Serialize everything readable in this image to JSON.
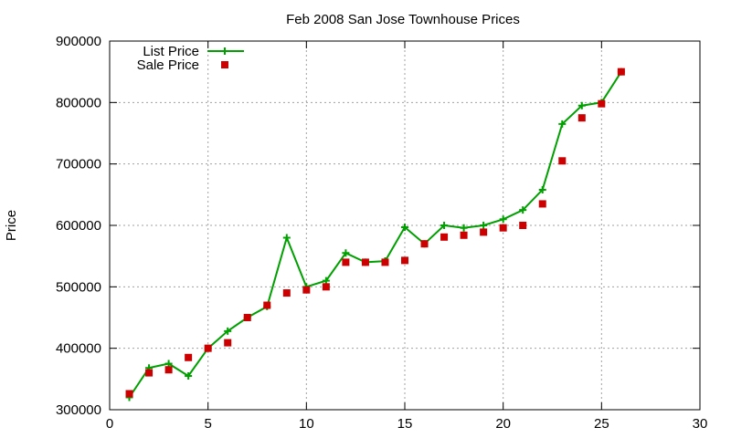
{
  "chart_data": {
    "type": "line",
    "title": "Feb 2008 San Jose Townhouse Prices",
    "xlabel": "",
    "ylabel": "Price",
    "xlim": [
      0,
      30
    ],
    "ylim": [
      300000,
      900000
    ],
    "xticks": [
      0,
      5,
      10,
      15,
      20,
      25,
      30
    ],
    "yticks": [
      300000,
      400000,
      500000,
      600000,
      700000,
      800000,
      900000
    ],
    "grid": true,
    "legend": "top-left",
    "series": [
      {
        "name": "List Price",
        "style": "line-plus",
        "color": "#00a000",
        "x": [
          1,
          2,
          3,
          4,
          5,
          6,
          7,
          8,
          9,
          10,
          11,
          12,
          13,
          14,
          15,
          16,
          17,
          18,
          19,
          20,
          21,
          22,
          23,
          24,
          25,
          26
        ],
        "y": [
          320000,
          368000,
          375000,
          355000,
          400000,
          428000,
          450000,
          468000,
          580000,
          500000,
          510000,
          555000,
          540000,
          542000,
          597000,
          570000,
          600000,
          596000,
          600000,
          610000,
          625000,
          658000,
          765000,
          795000,
          800000,
          850000
        ]
      },
      {
        "name": "Sale Price",
        "style": "square",
        "color": "#cc0000",
        "x": [
          1,
          2,
          3,
          4,
          5,
          6,
          7,
          8,
          9,
          10,
          11,
          12,
          13,
          14,
          15,
          16,
          17,
          18,
          19,
          20,
          21,
          22,
          23,
          24,
          25,
          26
        ],
        "y": [
          326000,
          360000,
          365000,
          385000,
          400000,
          409000,
          450000,
          470000,
          490000,
          495000,
          500000,
          540000,
          540000,
          540000,
          543000,
          570000,
          581000,
          584000,
          589000,
          596000,
          600000,
          635000,
          705000,
          775000,
          798000,
          850000
        ]
      }
    ]
  }
}
